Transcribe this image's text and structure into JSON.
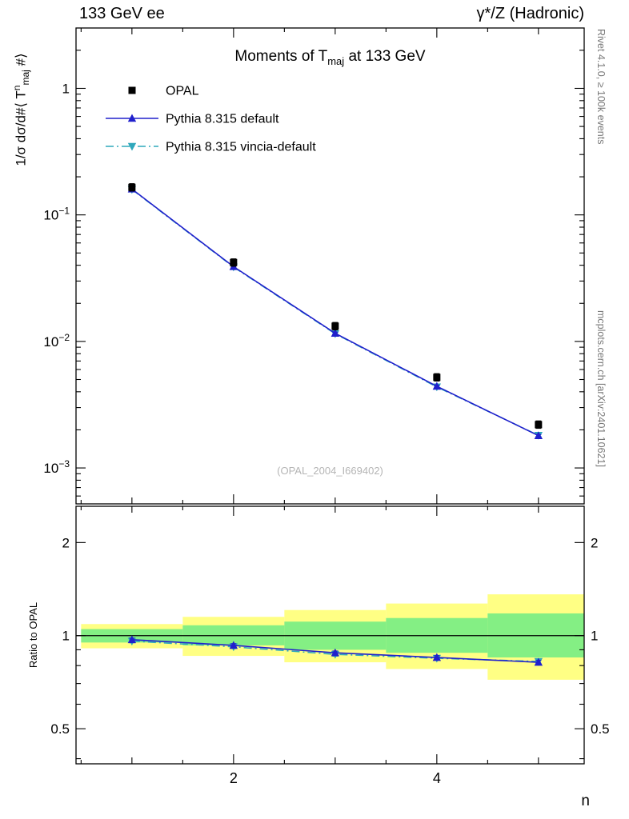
{
  "header": {
    "left": "133 GeV ee",
    "right": "γ*/Z (Hadronic)"
  },
  "title": {
    "pre": "Moments of T",
    "sub": "maj",
    "post": " at 133 GeV"
  },
  "labels": {
    "y_pre": "1/σ  dσ/d#⟨ T",
    "y_sup": "n",
    "y_sub": "maj",
    "y_post": " #⟩",
    "ratio": "Ratio to OPAL",
    "x": "n"
  },
  "watermark": "(OPAL_2004_I669402)",
  "side_notes": {
    "top": "Rivet 4.1.0, ≥ 100k events",
    "bottom": "mcplots.cern.ch [arXiv:2401.10621]"
  },
  "legend": [
    {
      "label": "OPAL",
      "marker": "square",
      "color": "#000000",
      "line": "none"
    },
    {
      "label": "Pythia 8.315 default",
      "marker": "triangle-up",
      "color": "#2020cc",
      "line": "solid"
    },
    {
      "label": "Pythia 8.315 vincia-default",
      "marker": "triangle-down",
      "color": "#2fa8bc",
      "line": "dashdot"
    }
  ],
  "chart_data": {
    "type": "line",
    "title": "Moments of T_maj at 133 GeV",
    "xlabel": "n",
    "ylabel": "1/σ dσ/d#⟨ T^n_maj #⟩",
    "x": [
      1,
      2,
      3,
      4,
      5
    ],
    "xlim": [
      0.45,
      5.45
    ],
    "xticks": [
      {
        "v": 2,
        "label": "2"
      },
      {
        "v": 4,
        "label": "4"
      }
    ],
    "xminor": [
      0.5,
      1,
      1.5,
      2.5,
      3,
      3.5,
      4.5,
      5
    ],
    "main_panel": {
      "yscale": "log",
      "ylim": [
        0.00052,
        3.0
      ],
      "yticks": [
        {
          "v": 1,
          "label": "1"
        },
        {
          "v": 0.1,
          "label": "10^−1"
        },
        {
          "v": 0.01,
          "label": "10^−2"
        },
        {
          "v": 0.001,
          "label": "10^−3"
        }
      ],
      "series": [
        {
          "name": "OPAL",
          "marker": "square",
          "color": "#000000",
          "line": "none",
          "values": [
            0.165,
            0.042,
            0.0132,
            0.0052,
            0.0022
          ],
          "err_factor": 1.07
        },
        {
          "name": "Pythia 8.315 default",
          "marker": "triangle-up",
          "color": "#2020cc",
          "line": "solid",
          "values": [
            0.16,
            0.039,
            0.0116,
            0.00442,
            0.0018
          ],
          "err_factor": 1.02
        },
        {
          "name": "Pythia 8.315 vincia-default",
          "marker": "triangle-down",
          "color": "#2fa8bc",
          "line": "dashdot",
          "values": [
            0.159,
            0.0387,
            0.0115,
            0.00437,
            0.00181
          ],
          "err_factor": 1.02
        }
      ]
    },
    "ratio_panel": {
      "yscale": "log",
      "ylim": [
        0.385,
        2.62
      ],
      "yticks": [
        {
          "v": 2,
          "label": "2"
        },
        {
          "v": 1,
          "label": "1"
        },
        {
          "v": 0.5,
          "label": "0.5"
        }
      ],
      "reference_line": 1,
      "bin_edges": [
        0.5,
        1.5,
        2.5,
        3.5,
        4.5,
        5.5
      ],
      "bands": {
        "yellow": {
          "color": "#ffff84",
          "lo": [
            0.91,
            0.86,
            0.82,
            0.78,
            0.72
          ],
          "hi": [
            1.09,
            1.15,
            1.21,
            1.27,
            1.36
          ]
        },
        "green": {
          "color": "#84ef84",
          "lo": [
            0.95,
            0.93,
            0.9,
            0.88,
            0.85
          ],
          "hi": [
            1.05,
            1.08,
            1.11,
            1.14,
            1.18
          ]
        }
      },
      "series": [
        {
          "name": "Pythia 8.315 default",
          "marker": "triangle-up",
          "color": "#2020cc",
          "line": "solid",
          "values": [
            0.97,
            0.93,
            0.88,
            0.85,
            0.82
          ],
          "err_abs": 0.012
        },
        {
          "name": "Pythia 8.315 vincia-default",
          "marker": "triangle-down",
          "color": "#2fa8bc",
          "line": "dashdot",
          "values": [
            0.96,
            0.92,
            0.87,
            0.845,
            0.825
          ],
          "err_abs": 0.012
        }
      ]
    }
  }
}
